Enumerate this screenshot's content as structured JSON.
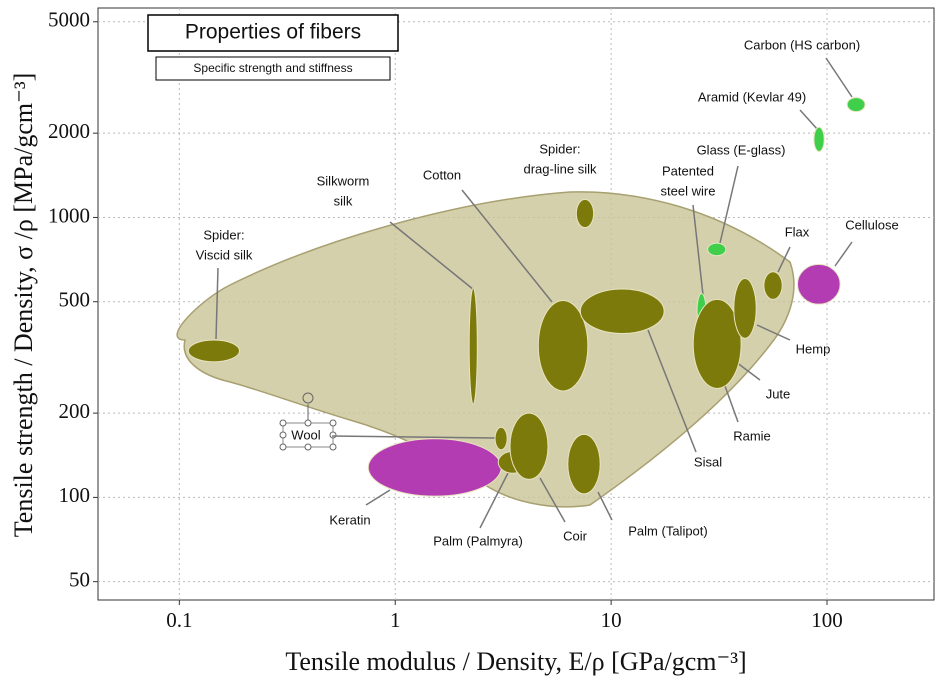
{
  "chart_data": {
    "type": "ellipse",
    "title": "Properties of fibers",
    "subtitle": "Specific strength and stiffness",
    "x_label": "Tensile modulus / Density, E/ρ [GPa/gcm⁻³]",
    "y_label": "Tensile strength / Density, σ /ρ [MPa/gcm⁻³]",
    "log_x": true,
    "log_y": true,
    "grid": true,
    "xlim": [
      0.042,
      313
    ],
    "ylim": [
      43,
      5600
    ],
    "xticks": [
      0.1,
      1,
      10,
      100
    ],
    "yticks": [
      50,
      100,
      200,
      500,
      1000,
      2000,
      5000
    ],
    "fibers": [
      {
        "name": [
          "Spider:",
          "Viscid silk"
        ],
        "xrange": [
          0.11,
          0.19
        ],
        "yrange": [
          305,
          365
        ],
        "color": "#7d7a0c"
      },
      {
        "name": [
          "Silkworm",
          "silk"
        ],
        "xrange": [
          2.2,
          2.4
        ],
        "yrange": [
          215,
          560
        ],
        "color": "#7d7a0c"
      },
      {
        "name": [
          "Cotton"
        ],
        "xrange": [
          4.6,
          7.8
        ],
        "yrange": [
          240,
          505
        ],
        "color": "#7d7a0c"
      },
      {
        "name": [
          "Spider:",
          "drag-line silk"
        ],
        "xrange": [
          6.9,
          8.3
        ],
        "yrange": [
          920,
          1160
        ],
        "color": "#7d7a0c"
      },
      {
        "name": [
          "Sisal"
        ],
        "xrange": [
          7.2,
          17.6
        ],
        "yrange": [
          385,
          555
        ],
        "color": "#7d7a0c"
      },
      {
        "name": [
          "Wool"
        ],
        "xrange": [
          2.9,
          3.3
        ],
        "yrange": [
          148,
          178
        ],
        "color": "#7d7a0c"
      },
      {
        "name": [
          "Keratin"
        ],
        "xrange": [
          0.75,
          3.1
        ],
        "yrange": [
          101,
          162
        ],
        "color": "#b33cb3"
      },
      {
        "name": [
          "Palm (Palmyra)"
        ],
        "xrange": [
          3.0,
          4.1
        ],
        "yrange": [
          122,
          146
        ],
        "color": "#7d7a0c"
      },
      {
        "name": [
          "Coir"
        ],
        "xrange": [
          3.4,
          5.1
        ],
        "yrange": [
          116,
          200
        ],
        "color": "#7d7a0c"
      },
      {
        "name": [
          "Palm (Talipot)"
        ],
        "xrange": [
          6.3,
          8.9
        ],
        "yrange": [
          103,
          168
        ],
        "color": "#7d7a0c"
      },
      {
        "name": [
          "Patented",
          "steel wire"
        ],
        "xrange": [
          25,
          27.5
        ],
        "yrange": [
          405,
          535
        ],
        "color": "#3fcf4a"
      },
      {
        "name": [
          "Ramie"
        ],
        "xrange": [
          25,
          31
        ],
        "yrange": [
          325,
          440
        ],
        "color": "#7d7a0c"
      },
      {
        "name": [
          "Jute"
        ],
        "xrange": [
          24,
          40
        ],
        "yrange": [
          245,
          510
        ],
        "color": "#7d7a0c"
      },
      {
        "name": [
          "Hemp"
        ],
        "xrange": [
          37,
          47
        ],
        "yrange": [
          370,
          605
        ],
        "color": "#7d7a0c"
      },
      {
        "name": [
          "Flax"
        ],
        "xrange": [
          51,
          62
        ],
        "yrange": [
          510,
          640
        ],
        "color": "#7d7a0c"
      },
      {
        "name": [
          "Glass (E-glass)"
        ],
        "xrange": [
          28,
          34
        ],
        "yrange": [
          730,
          810
        ],
        "color": "#3fcf4a"
      },
      {
        "name": [
          "Aramid (Kevlar 49)"
        ],
        "xrange": [
          87,
          97
        ],
        "yrange": [
          1720,
          2100
        ],
        "color": "#3fcf4a"
      },
      {
        "name": [
          "Carbon (HS carbon)"
        ],
        "xrange": [
          124,
          150
        ],
        "yrange": [
          2390,
          2680
        ],
        "color": "#3fcf4a"
      },
      {
        "name": [
          "Cellulose"
        ],
        "xrange": [
          73,
          115
        ],
        "yrange": [
          490,
          680
        ],
        "color": "#b33cb3"
      }
    ]
  }
}
